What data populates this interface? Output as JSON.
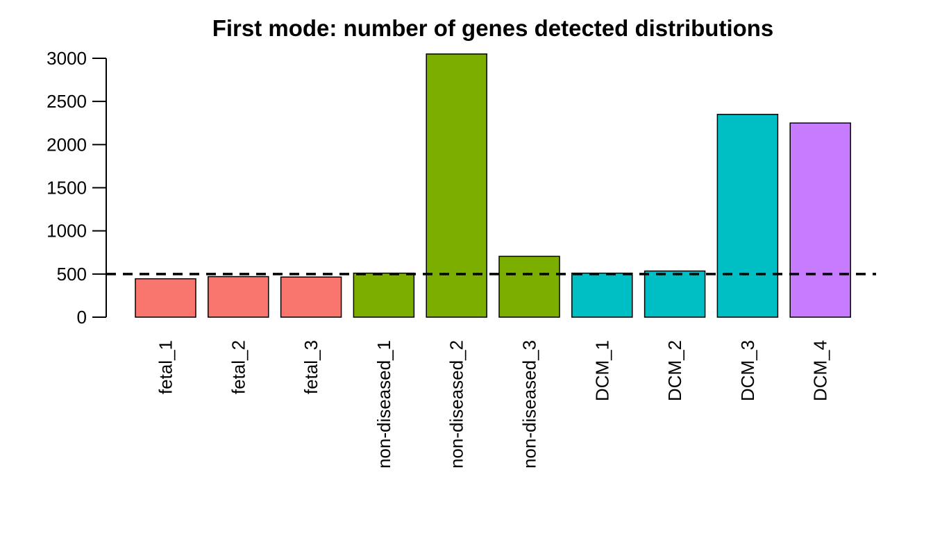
{
  "chart_data": {
    "type": "bar",
    "title": "First mode: number of genes detected distributions",
    "xlabel": "",
    "ylabel": "",
    "categories": [
      "fetal_1",
      "fetal_2",
      "fetal_3",
      "non-diseased_1",
      "non-diseased_2",
      "non-diseased_3",
      "DCM_1",
      "DCM_2",
      "DCM_3",
      "DCM_4"
    ],
    "values": [
      445,
      470,
      465,
      510,
      3050,
      705,
      510,
      535,
      2350,
      2250
    ],
    "bar_colors": [
      "#F8766D",
      "#F8766D",
      "#F8766D",
      "#7CAE00",
      "#7CAE00",
      "#7CAE00",
      "#00BFC4",
      "#00BFC4",
      "#00BFC4",
      "#C77CFF"
    ],
    "ylim": [
      0,
      3000
    ],
    "yticks": [
      0,
      500,
      1000,
      1500,
      2000,
      2500,
      3000
    ],
    "threshold_line": {
      "value": 500,
      "style": "dashed",
      "color": "#000000"
    },
    "grid": false,
    "legend": "none"
  }
}
